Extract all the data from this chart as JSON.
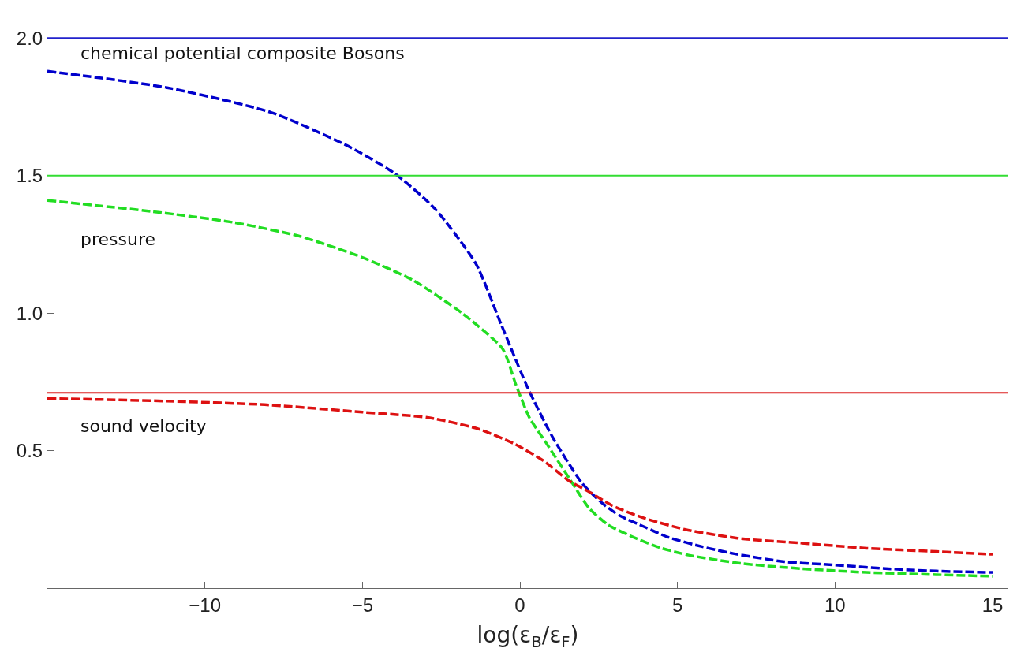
{
  "chart_data": {
    "type": "line",
    "xlabel": "log(ε$_{B}$/ε$_{F}$)",
    "xlim": [
      -15,
      15.5
    ],
    "ylim": [
      0,
      2.11
    ],
    "xticks": [
      {
        "value": -10,
        "label": "−10"
      },
      {
        "value": -5,
        "label": "−5"
      },
      0,
      5,
      10,
      15
    ],
    "yticks": [
      0.5,
      {
        "value": 1.0,
        "label": "1.0"
      },
      1.5,
      {
        "value": 2.0,
        "label": "2.0"
      }
    ],
    "legend": false,
    "marker": "none",
    "line_style": "dashed",
    "series": [
      {
        "name": "chemical potential composite Bosons",
        "color": "#0000cc",
        "x": [
          -15,
          -11.2,
          -7.9,
          -5.5,
          -4.0,
          -2.7,
          -1.4,
          -0.6,
          0.24,
          1.03,
          1.98,
          2.6,
          3.14,
          4.0,
          4.7,
          5.8,
          6.8,
          8.4,
          10,
          11.6,
          13.2,
          15
        ],
        "values": [
          1.88,
          1.82,
          1.73,
          1.61,
          1.51,
          1.38,
          1.18,
          0.96,
          0.73,
          0.55,
          0.38,
          0.31,
          0.265,
          0.22,
          0.185,
          0.15,
          0.125,
          0.096,
          0.084,
          0.071,
          0.062,
          0.057
        ]
      },
      {
        "name": "pressure",
        "color": "#22dd22",
        "x": [
          -15,
          -11.7,
          -9.1,
          -7.0,
          -4.95,
          -3.4,
          -1.84,
          -0.55,
          -0.13,
          0.3,
          0.82,
          1.56,
          2.2,
          2.8,
          3.7,
          4.5,
          5.35,
          7.0,
          8.9,
          11,
          13.2,
          15
        ],
        "values": [
          1.41,
          1.37,
          1.33,
          1.28,
          1.2,
          1.12,
          1.0,
          0.87,
          0.74,
          0.62,
          0.53,
          0.4,
          0.29,
          0.23,
          0.18,
          0.145,
          0.12,
          0.09,
          0.071,
          0.057,
          0.049,
          0.043
        ]
      },
      {
        "name": "sound velocity",
        "color": "#dd1111",
        "x": [
          -15,
          -11.2,
          -8.1,
          -5.0,
          -2.9,
          -1.35,
          -0.2,
          0.72,
          1.56,
          2.2,
          2.93,
          3.9,
          5.25,
          7.0,
          8.9,
          11.0,
          13.2,
          15
        ],
        "values": [
          0.69,
          0.68,
          0.667,
          0.64,
          0.62,
          0.58,
          0.526,
          0.465,
          0.39,
          0.35,
          0.3,
          0.256,
          0.213,
          0.18,
          0.164,
          0.145,
          0.133,
          0.123
        ]
      }
    ],
    "ref_lines": [
      {
        "axis": "y",
        "value": 2.0,
        "color": "#2222cc",
        "line_style": "solid"
      },
      {
        "axis": "y",
        "value": 1.5,
        "color": "#33dd33",
        "line_style": "solid"
      },
      {
        "axis": "y",
        "value": 0.71,
        "color": "#dd2222",
        "line_style": "solid"
      }
    ]
  }
}
